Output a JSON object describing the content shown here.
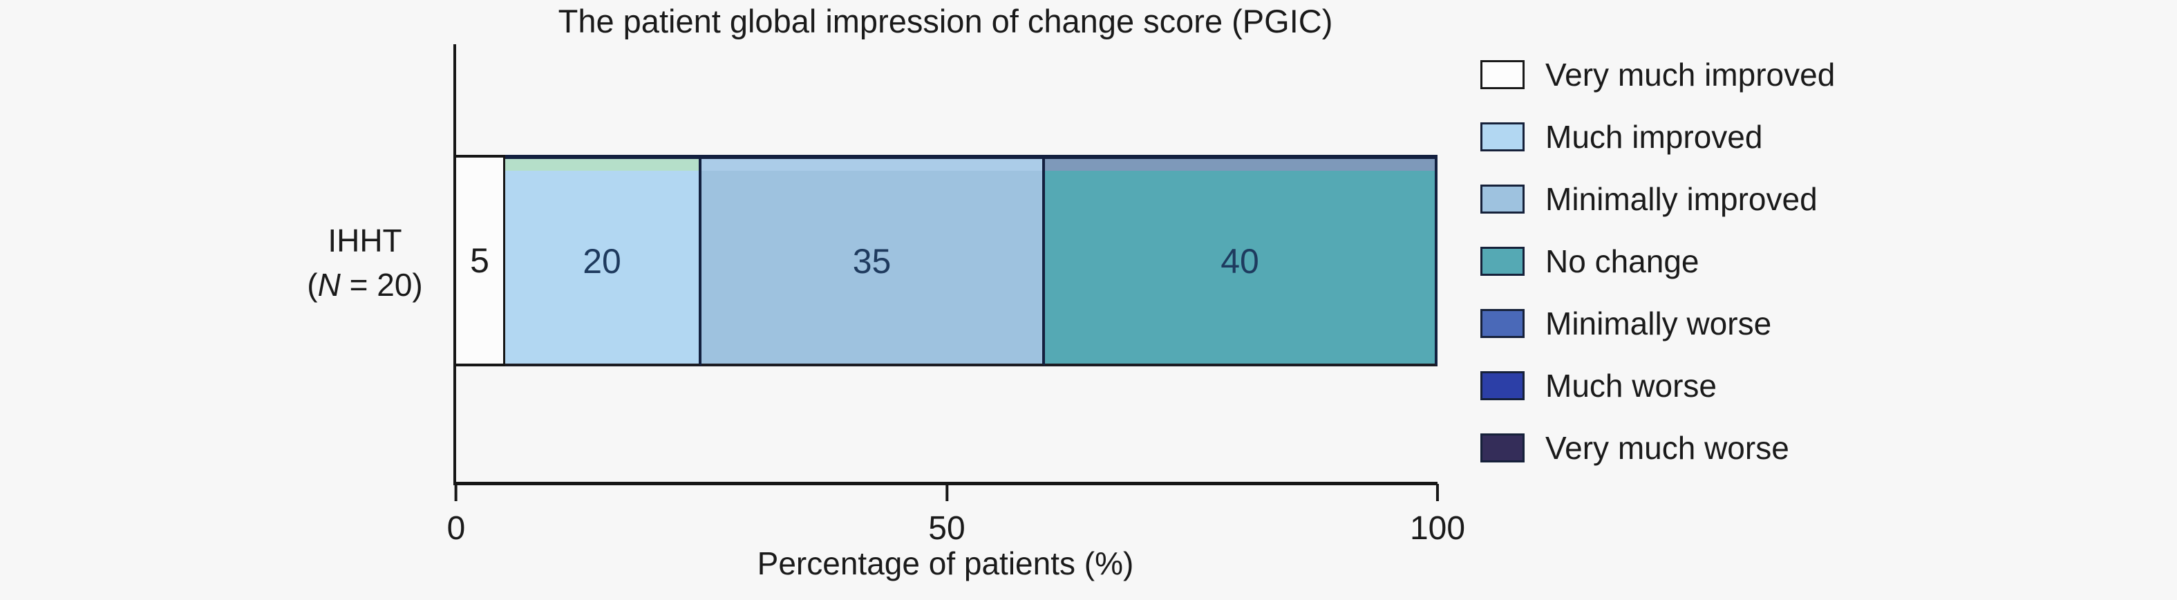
{
  "title": "The patient global impression of change score (PGIC)",
  "colors": {
    "background": "#f7f7f7",
    "text": "#1a1a1a",
    "axis": "#161616",
    "segment_border": "#13203f"
  },
  "chart_data": {
    "type": "bar",
    "orientation": "horizontal",
    "stacked": true,
    "title": "The patient global impression of change score (PGIC)",
    "xlabel": "Percentage of patients (%)",
    "ylabel": "",
    "xlim": [
      0,
      100
    ],
    "xticks": [
      "0",
      "50",
      "100"
    ],
    "xtick_values": [
      0,
      50,
      100
    ],
    "grid": false,
    "legend_position": "right",
    "categories": [
      "IHHT (N = 20)"
    ],
    "series": [
      {
        "name": "Very much improved",
        "values": [
          5
        ],
        "color": "#fcfcfc"
      },
      {
        "name": "Much improved",
        "values": [
          20
        ],
        "color": "#b2d7f2"
      },
      {
        "name": "Minimally improved",
        "values": [
          35
        ],
        "color": "#9ec2df"
      },
      {
        "name": "No change",
        "values": [
          40
        ],
        "color": "#55a9b4"
      },
      {
        "name": "Minimally worse",
        "values": [
          0
        ],
        "color": "#4a69b8"
      },
      {
        "name": "Much worse",
        "values": [
          0
        ],
        "color": "#2c3fa7"
      },
      {
        "name": "Very much worse",
        "values": [
          0
        ],
        "color": "#342d59"
      }
    ]
  },
  "category": {
    "line1": "IHHT",
    "line2_prefix": "(",
    "line2_italic": "N",
    "line2_suffix": " = 20)"
  },
  "bar_segments": [
    {
      "key": "very-much-improved",
      "value": 5,
      "label": "5",
      "fill": "#fcfcfc",
      "label_color": "#1c1c1c",
      "strip": null
    },
    {
      "key": "much-improved",
      "value": 20,
      "label": "20",
      "fill": "#b2d7f2",
      "label_color": "#1e3a5e",
      "strip": "#b5dfc9"
    },
    {
      "key": "minimally-improved",
      "value": 35,
      "label": "35",
      "fill": "#9ec2df",
      "label_color": "#1e3a5e",
      "strip": "#abcce8"
    },
    {
      "key": "no-change",
      "value": 40,
      "label": "40",
      "fill": "#55a9b4",
      "label_color": "#1e3a5e",
      "strip": "#7e99ba"
    }
  ],
  "x_axis": {
    "label": "Percentage of patients (%)",
    "ticks": [
      {
        "label": "0",
        "value": 0
      },
      {
        "label": "50",
        "value": 50
      },
      {
        "label": "100",
        "value": 100
      }
    ]
  },
  "legend": {
    "items": [
      {
        "key": "very-much-improved",
        "label": "Very much improved",
        "color": "#fdfdfd",
        "border": "#1a1a1a"
      },
      {
        "key": "much-improved",
        "label": "Much improved",
        "color": "#b2d7f2",
        "border": "#16213a"
      },
      {
        "key": "minimally-improved",
        "label": "Minimally improved",
        "color": "#9ec2df",
        "border": "#16213a"
      },
      {
        "key": "no-change",
        "label": "No change",
        "color": "#55a9b4",
        "border": "#16213a"
      },
      {
        "key": "minimally-worse",
        "label": "Minimally worse",
        "color": "#4a69b8",
        "border": "#16213a"
      },
      {
        "key": "much-worse",
        "label": "Much worse",
        "color": "#2c3fa7",
        "border": "#16213a"
      },
      {
        "key": "very-much-worse",
        "label": "Very much worse",
        "color": "#342d59",
        "border": "#16213a"
      }
    ]
  }
}
